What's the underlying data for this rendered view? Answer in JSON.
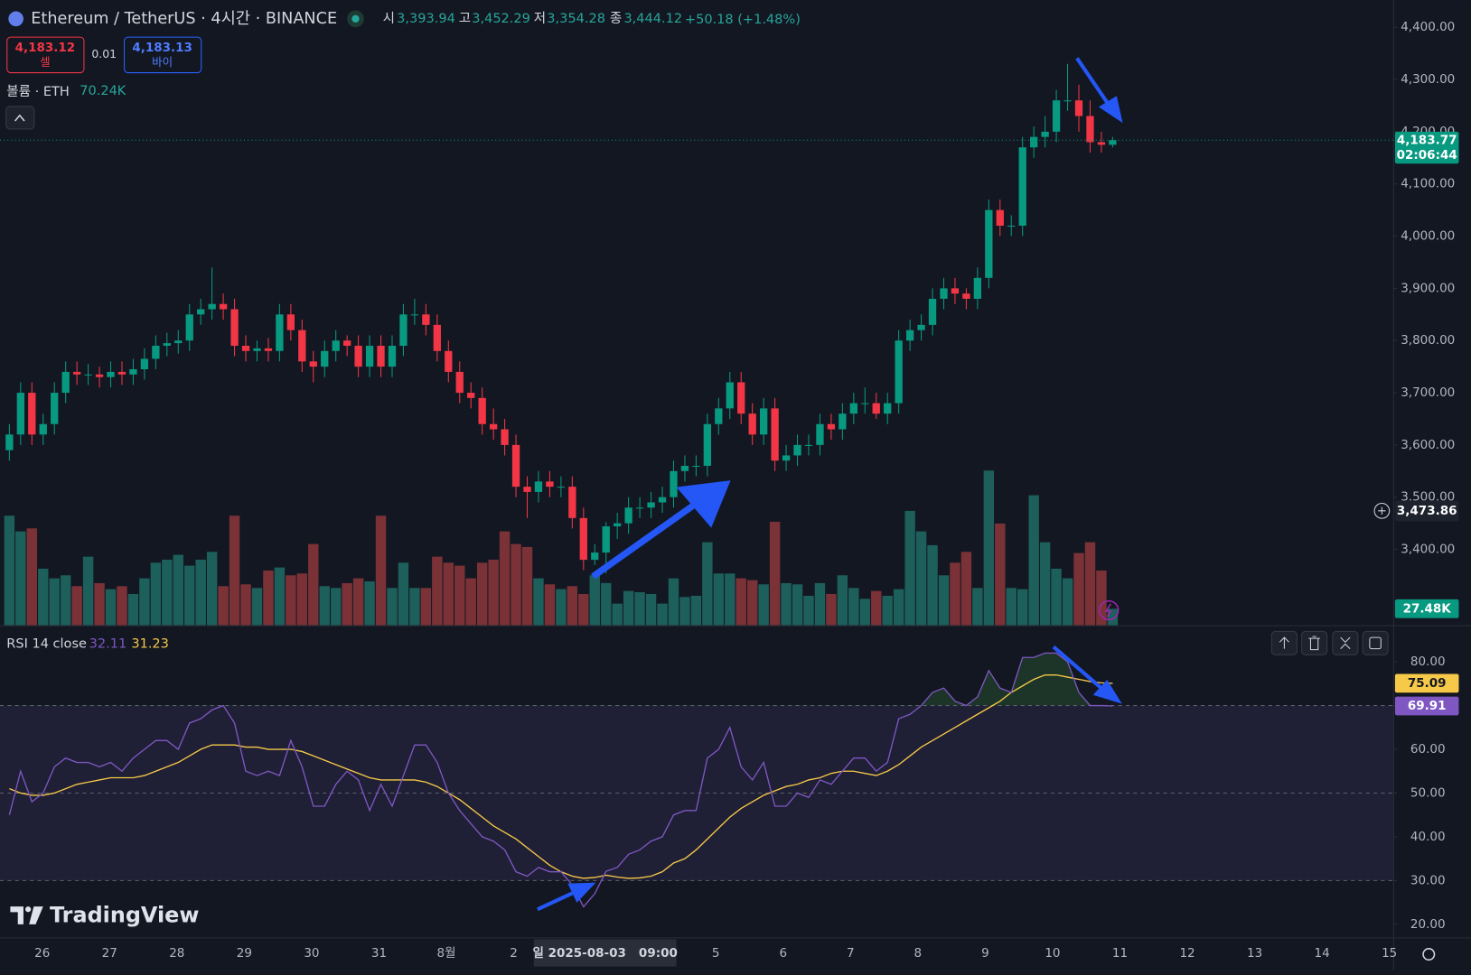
{
  "chart_data": {
    "type": "candlestick",
    "x_labels": [
      "26",
      "27",
      "28",
      "29",
      "30",
      "31",
      "8월",
      "2",
      null,
      null,
      "5",
      "6",
      "7",
      "8",
      "9",
      "10",
      "11",
      "12",
      "13",
      "14",
      "15"
    ],
    "open": [
      3590,
      3620,
      3700,
      3620,
      3640,
      3700,
      3740,
      3735,
      3735,
      3730,
      3740,
      3735,
      3745,
      3765,
      3790,
      3795,
      3800,
      3850,
      3860,
      3870,
      3860,
      3790,
      3780,
      3785,
      3780,
      3850,
      3820,
      3760,
      3750,
      3780,
      3800,
      3790,
      3750,
      3790,
      3750,
      3790,
      3850,
      3850,
      3830,
      3780,
      3740,
      3700,
      3690,
      3640,
      3630,
      3600,
      3520,
      3510,
      3530,
      3520,
      3520,
      3460,
      3380,
      3393.94,
      3444.12,
      3450,
      3480,
      3480,
      3490,
      3500,
      3550,
      3560,
      3560,
      3640,
      3670,
      3720,
      3660,
      3620,
      3670,
      3570,
      3580,
      3600,
      3600,
      3640,
      3630,
      3660,
      3680,
      3680,
      3660,
      3680,
      3800,
      3820,
      3830,
      3880,
      3900,
      3890,
      3880,
      3920,
      4050,
      4020,
      4020,
      4170,
      4190,
      4200,
      4260,
      4260,
      4230,
      4180,
      4175
    ],
    "high": [
      3640,
      3720,
      3720,
      3660,
      3720,
      3760,
      3760,
      3755,
      3750,
      3760,
      3760,
      3765,
      3785,
      3810,
      3815,
      3820,
      3870,
      3880,
      3940,
      3890,
      3880,
      3810,
      3800,
      3805,
      3870,
      3870,
      3840,
      3780,
      3800,
      3820,
      3810,
      3810,
      3810,
      3810,
      3810,
      3870,
      3880,
      3870,
      3850,
      3800,
      3760,
      3720,
      3710,
      3670,
      3650,
      3620,
      3540,
      3550,
      3550,
      3540,
      3540,
      3480,
      3410,
      3452.29,
      3470,
      3500,
      3500,
      3510,
      3520,
      3570,
      3580,
      3580,
      3660,
      3690,
      3740,
      3740,
      3680,
      3690,
      3690,
      3600,
      3620,
      3620,
      3660,
      3660,
      3680,
      3700,
      3710,
      3700,
      3700,
      3820,
      3840,
      3850,
      3900,
      3920,
      3920,
      3900,
      3940,
      4070,
      4070,
      4040,
      4190,
      4210,
      4230,
      4280,
      4330,
      4290,
      4260,
      4200,
      4190
    ],
    "low": [
      3570,
      3600,
      3600,
      3600,
      3620,
      3680,
      3715,
      3715,
      3710,
      3710,
      3715,
      3715,
      3725,
      3745,
      3770,
      3775,
      3780,
      3830,
      3840,
      3840,
      3770,
      3760,
      3760,
      3760,
      3760,
      3800,
      3740,
      3720,
      3730,
      3760,
      3770,
      3730,
      3730,
      3730,
      3730,
      3770,
      3830,
      3810,
      3760,
      3720,
      3680,
      3670,
      3620,
      3610,
      3580,
      3500,
      3460,
      3490,
      3500,
      3500,
      3440,
      3360,
      3370,
      3354.28,
      3420,
      3430,
      3460,
      3460,
      3470,
      3480,
      3530,
      3540,
      3540,
      3620,
      3650,
      3640,
      3600,
      3600,
      3550,
      3550,
      3560,
      3580,
      3580,
      3610,
      3610,
      3640,
      3660,
      3650,
      3640,
      3660,
      3780,
      3800,
      3810,
      3860,
      3870,
      3860,
      3860,
      3900,
      4000,
      4000,
      4000,
      4150,
      4170,
      4180,
      4240,
      4200,
      4160,
      4160,
      4170
    ],
    "close": [
      3620,
      3700,
      3620,
      3640,
      3700,
      3740,
      3735,
      3735,
      3730,
      3740,
      3735,
      3745,
      3765,
      3790,
      3795,
      3800,
      3850,
      3860,
      3870,
      3860,
      3790,
      3780,
      3785,
      3780,
      3850,
      3820,
      3760,
      3750,
      3780,
      3800,
      3790,
      3750,
      3790,
      3750,
      3790,
      3850,
      3850,
      3830,
      3780,
      3740,
      3700,
      3690,
      3640,
      3630,
      3600,
      3520,
      3510,
      3530,
      3520,
      3520,
      3460,
      3380,
      3393.94,
      3444.12,
      3450,
      3480,
      3480,
      3490,
      3500,
      3550,
      3560,
      3560,
      3640,
      3670,
      3720,
      3660,
      3620,
      3670,
      3570,
      3580,
      3600,
      3600,
      3640,
      3630,
      3660,
      3680,
      3680,
      3660,
      3680,
      3800,
      3820,
      3830,
      3880,
      3900,
      3890,
      3880,
      3920,
      4050,
      4020,
      4020,
      4170,
      4190,
      4200,
      4260,
      4260,
      4230,
      4180,
      4175,
      4183.77
    ],
    "up_color": "#089981",
    "down_color": "#f23645",
    "ylim": [
      3254.6,
      4452.1
    ],
    "yticks": [
      {
        "value": 3400,
        "label": "3,400.00"
      },
      {
        "value": 3500,
        "label": "3,500.00"
      },
      {
        "value": 3600,
        "label": "3,600.00"
      },
      {
        "value": 3700,
        "label": "3,700.00"
      },
      {
        "value": 3800,
        "label": "3,800.00"
      },
      {
        "value": 3900,
        "label": "3,900.00"
      },
      {
        "value": 4000,
        "label": "4,000.00"
      },
      {
        "value": 4100,
        "label": "4,100.00"
      },
      {
        "value": 4200,
        "label": "4,200.00"
      },
      {
        "value": 4300,
        "label": "4,300.00"
      },
      {
        "value": 4400,
        "label": "4,400.00"
      }
    ],
    "price_marker": {
      "value": 3473.86,
      "label": "3,473.86"
    },
    "volume": {
      "ylim": [
        0,
        260
      ],
      "up_color": "#1d5f5b",
      "down_color": "#7a3237",
      "values": [
        182,
        156,
        161,
        94,
        78,
        83,
        65,
        114,
        70,
        60,
        65,
        52,
        78,
        104,
        109,
        117,
        99,
        109,
        122,
        65,
        182,
        68,
        62,
        91,
        96,
        83,
        86,
        135,
        65,
        62,
        70,
        78,
        73,
        182,
        62,
        104,
        62,
        62,
        114,
        104,
        99,
        78,
        104,
        109,
        156,
        135,
        130,
        78,
        68,
        60,
        65,
        52,
        83,
        70.24,
        36,
        57,
        55,
        52,
        36,
        78,
        47,
        49,
        138,
        86,
        86,
        78,
        75,
        68,
        172,
        70,
        68,
        49,
        70,
        52,
        83,
        62,
        44,
        57,
        49,
        60,
        190,
        156,
        133,
        83,
        104,
        122,
        62,
        257,
        169,
        62,
        60,
        216,
        138,
        94,
        78,
        120,
        138,
        91,
        27.48
      ]
    },
    "rsi": {
      "color": "#7e57c2",
      "ylim": [
        17,
        88.14
      ],
      "yticks": [
        {
          "value": 20,
          "label": "20.00"
        },
        {
          "value": 30,
          "label": "30.00"
        },
        {
          "value": 40,
          "label": "40.00"
        },
        {
          "value": 50,
          "label": "50.00"
        },
        {
          "value": 60,
          "label": "60.00"
        },
        {
          "value": 70,
          "label": "70.00"
        },
        {
          "value": 80,
          "label": "80.00"
        }
      ],
      "bands": [
        30,
        50,
        70
      ],
      "band_fill": "rgba(126,87,194,0.12)",
      "overbought_fill": "rgba(56,142,60,0.25)",
      "values": [
        45,
        55,
        48,
        50,
        56,
        58,
        57,
        57,
        56,
        57,
        55,
        58,
        60,
        62,
        62,
        60,
        66,
        67,
        69,
        70,
        66,
        55,
        54,
        55,
        54,
        62,
        56,
        47,
        47,
        52,
        55,
        53,
        46,
        52,
        47,
        54,
        61,
        61,
        57,
        50,
        46,
        43,
        40,
        39,
        37,
        32,
        31,
        33,
        32,
        32,
        29,
        24,
        27,
        32.11,
        33,
        36,
        37,
        39,
        40,
        45,
        46,
        46,
        58,
        60,
        65,
        56,
        53,
        57,
        47,
        47,
        50,
        49,
        53,
        52,
        55,
        58,
        58,
        55,
        57,
        67,
        68,
        70,
        73,
        74,
        71,
        70,
        72,
        78,
        74,
        73,
        81,
        81,
        82,
        82,
        80,
        73,
        70,
        70,
        69.91
      ]
    },
    "rsi_ma": {
      "color": "#f7c948",
      "values": [
        51,
        50,
        49.5,
        49.5,
        50,
        51,
        52,
        52.5,
        53,
        53.5,
        53.5,
        53.5,
        54,
        55,
        56,
        57,
        58.5,
        60,
        61,
        61,
        61,
        60.5,
        60.5,
        60,
        60,
        60,
        59.5,
        58.5,
        57.5,
        56.5,
        55.5,
        54.5,
        53.5,
        53,
        53,
        53,
        53,
        52.5,
        51.5,
        50,
        48.5,
        46.5,
        44.5,
        42.5,
        41,
        39.5,
        37.5,
        35.5,
        33.5,
        32,
        31,
        30.5,
        30.7,
        31.23,
        30.8,
        30.5,
        30.6,
        31,
        32,
        34,
        35,
        37,
        39.5,
        42,
        44.5,
        46.5,
        48,
        49.5,
        50.5,
        51.5,
        52,
        53,
        53.5,
        54.5,
        55,
        55,
        54.5,
        54,
        55,
        56.5,
        58.5,
        60.5,
        62,
        63.5,
        65,
        66.5,
        68,
        69.5,
        71,
        73,
        74.5,
        76,
        77,
        77,
        76.5,
        76,
        75.5,
        75.2,
        75.09
      ]
    }
  },
  "ui": {
    "symbol": "Ethereum / TetherUS · 4시간 · BINANCE",
    "o_label": "시",
    "o_value": "3,393.94",
    "h_label": "고",
    "h_value": "3,452.29",
    "l_label": "저",
    "l_value": "3,354.28",
    "c_label": "종",
    "c_value": "3,444.12",
    "change": "+50.18 (+1.48%)",
    "sell_price": "4,183.12",
    "sell_label": "셀",
    "spread": "0.01",
    "buy_price": "4,183.13",
    "buy_label": "바이",
    "volume_legend": "볼륨 · ETH",
    "volume_value": "70.24K",
    "rsi_legend": "RSI 14 close",
    "last_price": "4,183.77",
    "countdown": "02:06:44",
    "volume_last": "27.48K",
    "crosshair_time": "일 2025-08-03   09:00",
    "brand": "TradingView"
  }
}
